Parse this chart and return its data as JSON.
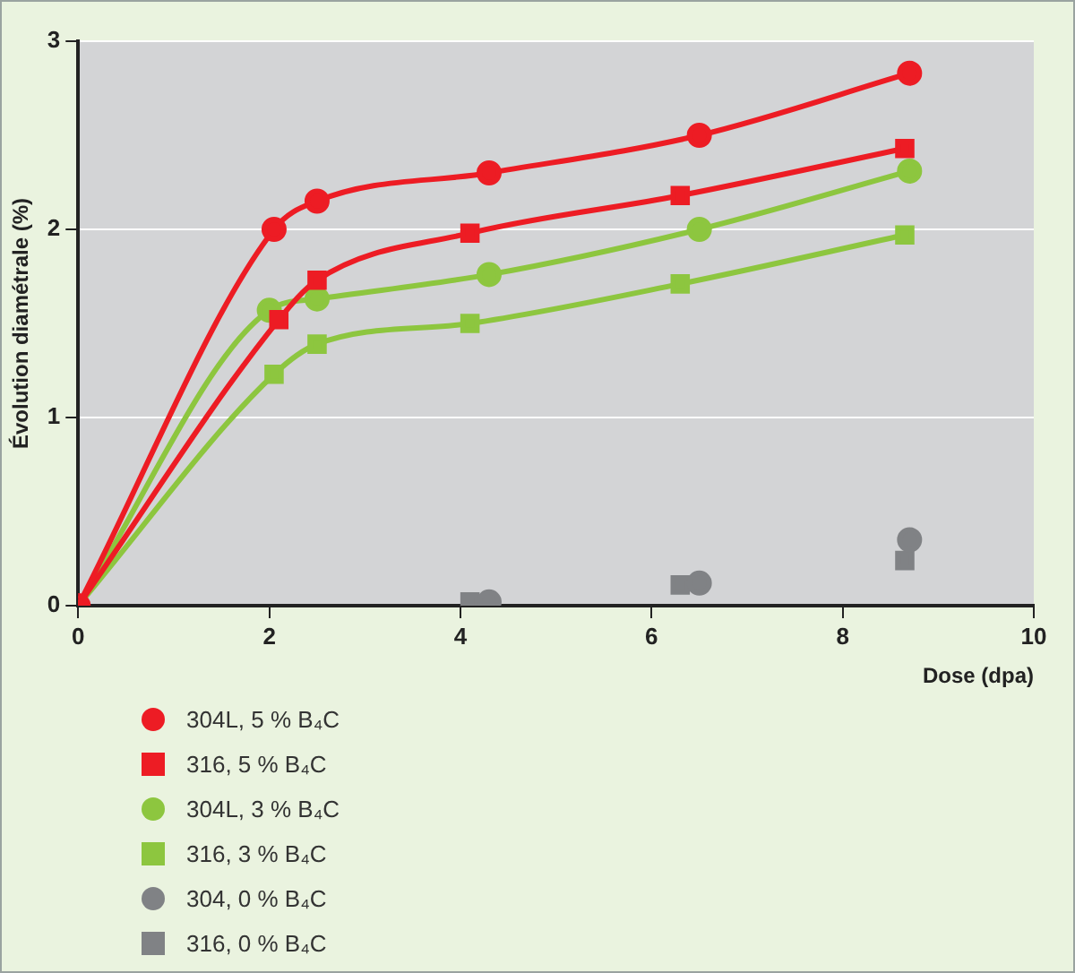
{
  "chart_data": {
    "type": "line",
    "xlabel": "Dose (dpa)",
    "ylabel": "Évolution diamétrale (%)",
    "xlim": [
      0,
      10
    ],
    "xticks": [
      0,
      2,
      4,
      6,
      8,
      10
    ],
    "ylim": [
      0,
      3
    ],
    "yticks": [
      0,
      1,
      2,
      3
    ],
    "grid": "y",
    "legend": "bottom",
    "series": [
      {
        "name": "304L, 5 % B₄C",
        "color": "#ed1c24",
        "marker": "circle",
        "x": [
          0,
          2.05,
          2.5,
          4.3,
          6.5,
          8.7
        ],
        "values": [
          0,
          2.0,
          2.15,
          2.3,
          2.5,
          2.83
        ]
      },
      {
        "name": "316, 5 % B₄C",
        "color": "#ed1c24",
        "marker": "square",
        "x": [
          0,
          2.1,
          2.5,
          4.1,
          6.3,
          8.65
        ],
        "values": [
          0,
          1.52,
          1.73,
          1.98,
          2.18,
          2.43
        ]
      },
      {
        "name": "304L, 3 % B₄C",
        "color": "#8dc63f",
        "marker": "circle",
        "x": [
          0,
          2.0,
          2.5,
          4.3,
          6.5,
          8.7
        ],
        "values": [
          0,
          1.57,
          1.63,
          1.76,
          2.0,
          2.31
        ]
      },
      {
        "name": "316, 3 % B₄C",
        "color": "#8dc63f",
        "marker": "square",
        "x": [
          0,
          2.05,
          2.5,
          4.1,
          6.3,
          8.65
        ],
        "values": [
          0,
          1.23,
          1.39,
          1.5,
          1.71,
          1.97
        ]
      },
      {
        "name": "304, 0 % B₄C",
        "type": "scatter",
        "color": "#808285",
        "marker": "circle",
        "x": [
          4.3,
          6.5,
          8.7
        ],
        "values": [
          0.02,
          0.12,
          0.35
        ]
      },
      {
        "name": "316, 0 % B₄C",
        "type": "scatter",
        "color": "#808285",
        "marker": "square",
        "x": [
          4.1,
          6.3,
          8.65
        ],
        "values": [
          0.02,
          0.11,
          0.24
        ]
      }
    ]
  }
}
